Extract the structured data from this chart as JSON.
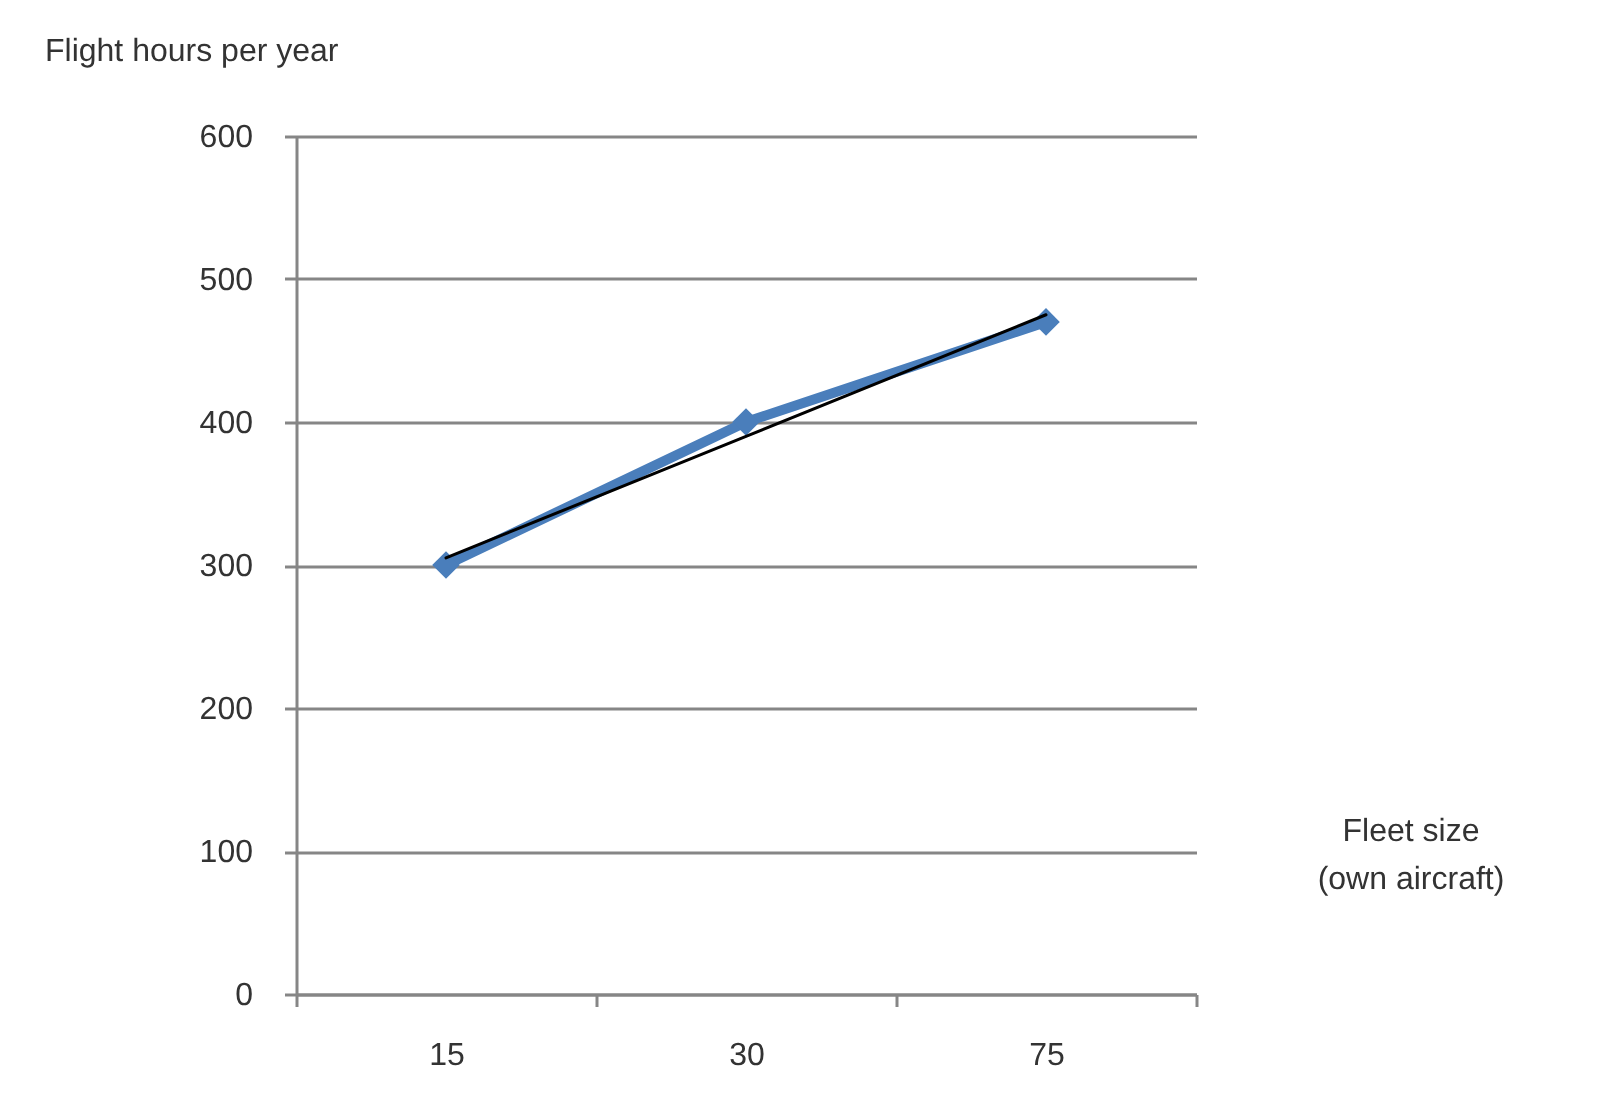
{
  "chart_data": {
    "type": "line",
    "xlabel": "Fleet size\n(own aircraft)",
    "ylabel": "Flight hours per year",
    "categories": [
      "15",
      "30",
      "75"
    ],
    "series": [
      {
        "color": "#4a7ebb",
        "values": [
          300,
          400,
          470
        ],
        "marker": "diamond"
      },
      {
        "type": "line",
        "color": "#000000",
        "values": [
          305,
          390,
          475
        ],
        "marker": "none"
      }
    ],
    "ylim": [
      0,
      600
    ],
    "yticks": [
      0,
      100,
      200,
      300,
      400,
      500,
      600
    ],
    "grid": "y"
  }
}
